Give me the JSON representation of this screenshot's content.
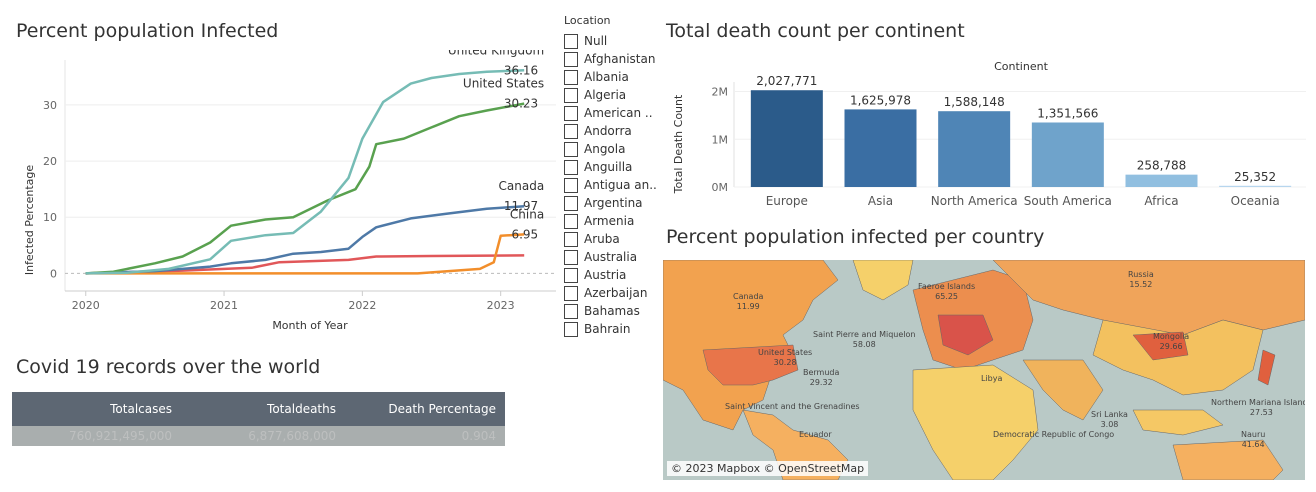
{
  "line_section": {
    "title": "Percent population Infected",
    "chart_data": {
      "type": "line",
      "xlabel": "Month of Year",
      "ylabel": "Infected Percentage",
      "x_ticks": [
        "2020",
        "2021",
        "2022",
        "2023"
      ],
      "y_ticks": [
        "0",
        "10",
        "20",
        "30"
      ],
      "ylim": [
        -1,
        38
      ],
      "grid": true,
      "series": [
        {
          "name": "United Kingdom",
          "color": "#76bcb5",
          "end_label": "36.16",
          "points": [
            [
              2020.0,
              0
            ],
            [
              2020.3,
              0.1
            ],
            [
              2020.6,
              0.8
            ],
            [
              2020.9,
              2.5
            ],
            [
              2021.05,
              5.8
            ],
            [
              2021.3,
              6.8
            ],
            [
              2021.5,
              7.2
            ],
            [
              2021.7,
              11
            ],
            [
              2021.9,
              17
            ],
            [
              2022.0,
              24
            ],
            [
              2022.15,
              30.5
            ],
            [
              2022.35,
              33.8
            ],
            [
              2022.5,
              34.8
            ],
            [
              2022.7,
              35.5
            ],
            [
              2022.9,
              35.9
            ],
            [
              2023.17,
              36.16
            ]
          ]
        },
        {
          "name": "United States",
          "color": "#59a14f",
          "end_label": "30.23",
          "points": [
            [
              2020.0,
              0
            ],
            [
              2020.2,
              0.3
            ],
            [
              2020.5,
              1.8
            ],
            [
              2020.7,
              3
            ],
            [
              2020.9,
              5.5
            ],
            [
              2021.05,
              8.5
            ],
            [
              2021.3,
              9.6
            ],
            [
              2021.5,
              10
            ],
            [
              2021.75,
              13
            ],
            [
              2021.95,
              15
            ],
            [
              2022.05,
              19
            ],
            [
              2022.1,
              23
            ],
            [
              2022.3,
              24
            ],
            [
              2022.5,
              26
            ],
            [
              2022.7,
              28
            ],
            [
              2022.9,
              29
            ],
            [
              2023.17,
              30.23
            ]
          ]
        },
        {
          "name": "Canada",
          "color": "#4e79a7",
          "end_label": "11.97",
          "points": [
            [
              2020.0,
              0
            ],
            [
              2020.5,
              0.4
            ],
            [
              2020.9,
              1.2
            ],
            [
              2021.05,
              1.8
            ],
            [
              2021.3,
              2.4
            ],
            [
              2021.5,
              3.5
            ],
            [
              2021.7,
              3.8
            ],
            [
              2021.9,
              4.4
            ],
            [
              2022.0,
              6.5
            ],
            [
              2022.1,
              8.2
            ],
            [
              2022.35,
              9.8
            ],
            [
              2022.6,
              10.6
            ],
            [
              2022.9,
              11.5
            ],
            [
              2023.17,
              11.97
            ]
          ]
        },
        {
          "name": "China",
          "color": "#f28e2b",
          "end_label": "6.95",
          "points": [
            [
              2020.0,
              0
            ],
            [
              2022.4,
              0
            ],
            [
              2022.85,
              0.8
            ],
            [
              2022.95,
              2
            ],
            [
              2023.0,
              6.7
            ],
            [
              2023.17,
              6.95
            ]
          ]
        },
        {
          "name": "",
          "color": "#e15759",
          "end_label": "",
          "points": [
            [
              2020.0,
              0
            ],
            [
              2020.7,
              0.5
            ],
            [
              2021.2,
              1
            ],
            [
              2021.4,
              2
            ],
            [
              2021.9,
              2.4
            ],
            [
              2022.1,
              3
            ],
            [
              2022.5,
              3.1
            ],
            [
              2023.17,
              3.2
            ]
          ]
        }
      ]
    }
  },
  "legend": {
    "title": "Location",
    "items": [
      "Null",
      "Afghanistan",
      "Albania",
      "Algeria",
      "American ..",
      "Andorra",
      "Angola",
      "Anguilla",
      "Antigua an..",
      "Argentina",
      "Armenia",
      "Aruba",
      "Australia",
      "Austria",
      "Azerbaijan",
      "Bahamas",
      "Bahrain"
    ]
  },
  "bar_section": {
    "title": "Total death count per continent",
    "chart_data": {
      "type": "bar",
      "title": "Continent",
      "ylabel": "Total Death Count",
      "categories": [
        "Europe",
        "Asia",
        "North America",
        "South America",
        "Africa",
        "Oceania"
      ],
      "values": [
        2027771,
        1625978,
        1588148,
        1351566,
        258788,
        25352
      ],
      "data_labels": [
        "2,027,771",
        "1,625,978",
        "1,588,148",
        "1,351,566",
        "258,788",
        "25,352"
      ],
      "colors": [
        "#2b5b8a",
        "#3a6ea3",
        "#4f85b6",
        "#6fa3cb",
        "#91bfe0",
        "#b7d6ee"
      ],
      "y_ticks": [
        "0M",
        "1M",
        "2M"
      ],
      "ylim": [
        0,
        2200000
      ]
    }
  },
  "table_section": {
    "title": "Covid 19 records over the world",
    "headers": [
      "Totalcases",
      "Totaldeaths",
      "Death Percentage"
    ],
    "row": [
      "760,921,495,000",
      "6,877,608,000",
      "0.904"
    ]
  },
  "map_section": {
    "title": "Percent population infected per country",
    "credit": "© 2023 Mapbox © OpenStreetMap",
    "labels": [
      {
        "name": "Canada",
        "value": "11.99"
      },
      {
        "name": "United States",
        "value": "30.28"
      },
      {
        "name": "Saint Pierre and Miquelon",
        "value": "58.08"
      },
      {
        "name": "Bermuda",
        "value": "29.32"
      },
      {
        "name": "Faeroe Islands",
        "value": "65.25"
      },
      {
        "name": "Russia",
        "value": "15.52"
      },
      {
        "name": "Mongolia",
        "value": "29.66"
      },
      {
        "name": "Northern Mariana Islands",
        "value": "27.53"
      },
      {
        "name": "Nauru",
        "value": "41.64"
      },
      {
        "name": "Saint Vincent and the Grenadines",
        "value": ""
      },
      {
        "name": "Sri Lanka",
        "value": "3.08"
      },
      {
        "name": "Ecuador",
        "value": ""
      },
      {
        "name": "Democratic Republic of Congo",
        "value": ""
      },
      {
        "name": "Libya",
        "value": ""
      }
    ]
  }
}
